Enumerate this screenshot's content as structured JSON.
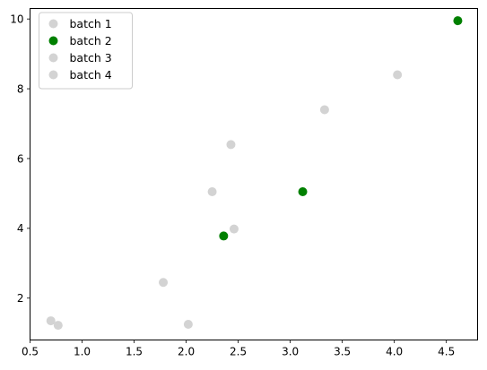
{
  "chart_data": {
    "type": "scatter",
    "title": "",
    "xlabel": "",
    "ylabel": "",
    "xlim": [
      0.5,
      4.8
    ],
    "ylim": [
      0.8,
      10.3
    ],
    "xticks": [
      0.5,
      1.0,
      1.5,
      2.0,
      2.5,
      3.0,
      3.5,
      4.0,
      4.5
    ],
    "xtick_labels": [
      "0.5",
      "1.0",
      "1.5",
      "2.0",
      "2.5",
      "3.0",
      "3.5",
      "4.0",
      "4.5"
    ],
    "yticks": [
      2,
      4,
      6,
      8,
      10
    ],
    "ytick_labels": [
      "2",
      "4",
      "6",
      "8",
      "10"
    ],
    "grid": false,
    "legend_position": "upper-left",
    "series": [
      {
        "name": "batch 1",
        "color": "#d3d3d3",
        "points": [
          [
            0.7,
            1.35
          ],
          [
            2.25,
            5.05
          ],
          [
            2.43,
            6.4
          ],
          [
            3.33,
            7.4
          ],
          [
            4.03,
            8.4
          ]
        ]
      },
      {
        "name": "batch 2",
        "color": "#008000",
        "points": [
          [
            2.36,
            3.78
          ],
          [
            3.12,
            5.05
          ],
          [
            4.61,
            9.95
          ]
        ]
      },
      {
        "name": "batch 3",
        "color": "#d3d3d3",
        "points": [
          [
            0.77,
            1.22
          ],
          [
            1.78,
            2.45
          ],
          [
            2.02,
            1.25
          ],
          [
            2.46,
            3.98
          ]
        ]
      },
      {
        "name": "batch 4",
        "color": "#d3d3d3",
        "points": []
      }
    ]
  }
}
